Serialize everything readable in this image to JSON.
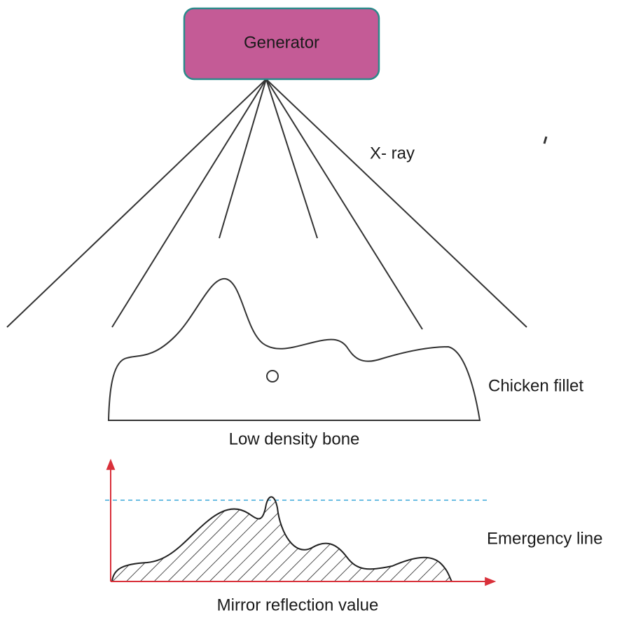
{
  "generator": {
    "label": "Generator"
  },
  "labels": {
    "xray": "X- ray",
    "fillet": "Chicken fillet",
    "bone": "Low density bone",
    "emergency": "Emergency line",
    "reflection": "Mirror reflection value"
  }
}
